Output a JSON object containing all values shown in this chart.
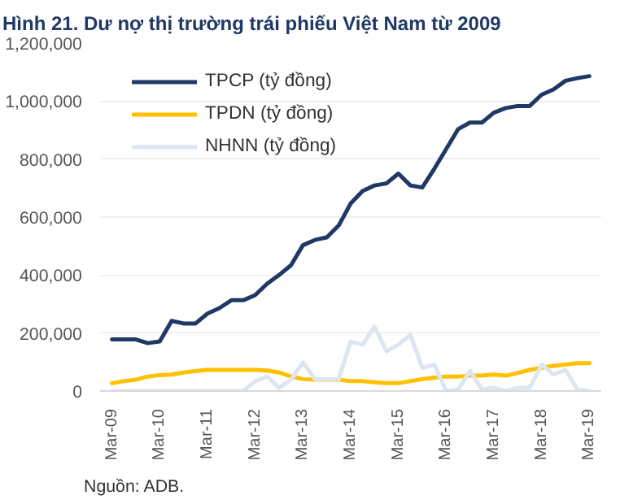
{
  "chart_data": {
    "type": "line",
    "title": "Hình 21. Dư nợ thị trường trái phiếu Việt Nam từ 2009",
    "categories": [
      "Mar-09",
      null,
      null,
      null,
      "Mar-10",
      null,
      null,
      null,
      "Mar-11",
      null,
      null,
      null,
      "Mar-12",
      null,
      null,
      null,
      "Mar-13",
      null,
      null,
      null,
      "Mar-14",
      null,
      null,
      null,
      "Mar-15",
      null,
      null,
      null,
      "Mar-16",
      null,
      null,
      null,
      "Mar-17",
      null,
      null,
      null,
      "Mar-18",
      null,
      null,
      null,
      "Mar-19"
    ],
    "series": [
      {
        "name": "TPCP (tỷ đồng)",
        "color": "#1f3864",
        "values": [
          178000,
          178000,
          178000,
          165000,
          171000,
          242000,
          233000,
          233000,
          267000,
          286000,
          313000,
          313000,
          331000,
          370000,
          400000,
          434000,
          503000,
          521000,
          530000,
          571000,
          647000,
          690000,
          709000,
          716000,
          750000,
          709000,
          702000,
          766000,
          834000,
          903000,
          926000,
          926000,
          960000,
          976000,
          983000,
          983000,
          1022000,
          1040000,
          1070000,
          1079000,
          1086000
        ]
      },
      {
        "name": "TPDN (tỷ đồng)",
        "color": "#ffc000",
        "values": [
          27000,
          34000,
          39000,
          50000,
          55000,
          57000,
          64000,
          69000,
          73000,
          73000,
          73000,
          73000,
          73000,
          71000,
          64000,
          50000,
          41000,
          39000,
          39000,
          39000,
          34000,
          34000,
          30000,
          27000,
          27000,
          34000,
          41000,
          46000,
          50000,
          50000,
          53000,
          53000,
          57000,
          53000,
          62000,
          73000,
          80000,
          87000,
          91000,
          96000,
          96000
        ]
      },
      {
        "name": "NHNN (tỷ đồng)",
        "color": "#dde6f0",
        "values": [
          0,
          0,
          0,
          0,
          0,
          0,
          0,
          0,
          0,
          0,
          0,
          0,
          34000,
          50000,
          11000,
          39000,
          98000,
          41000,
          41000,
          41000,
          171000,
          160000,
          222000,
          137000,
          160000,
          194000,
          80000,
          91000,
          0,
          5000,
          69000,
          5000,
          11000,
          0,
          11000,
          11000,
          91000,
          57000,
          73000,
          5000,
          0
        ]
      }
    ],
    "ylim": [
      0,
      1200000
    ],
    "yticks": [
      {
        "value": 0,
        "label": "0"
      },
      {
        "value": 200000,
        "label": "200,000"
      },
      {
        "value": 400000,
        "label": "400,000"
      },
      {
        "value": 600000,
        "label": "600,000"
      },
      {
        "value": 800000,
        "label": "800,000"
      },
      {
        "value": 1000000,
        "label": "1,000,000"
      },
      {
        "value": 1200000,
        "label": "1,200,000"
      }
    ],
    "grid": "y",
    "legend": "top left",
    "line_style": "solid",
    "marker": "none",
    "annotations": [
      "Nguồn: ADB."
    ]
  }
}
